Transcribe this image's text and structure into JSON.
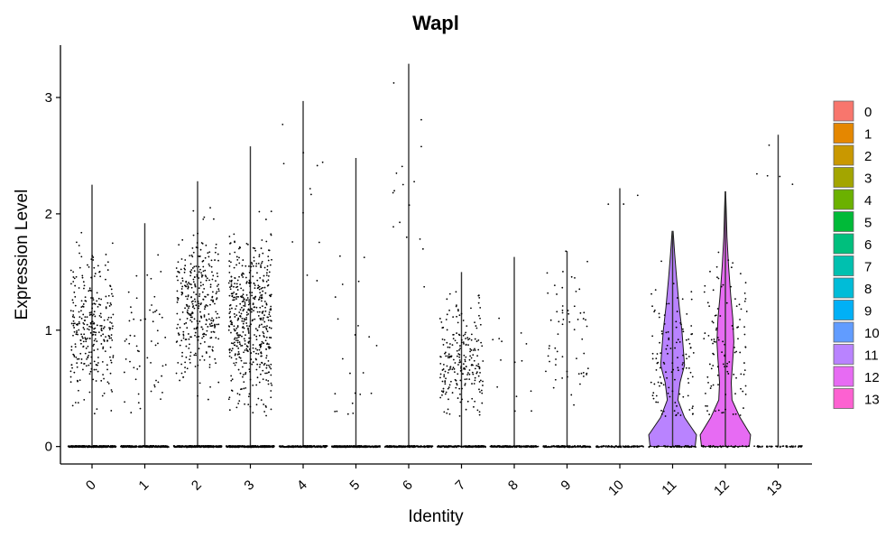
{
  "chart_data": {
    "type": "violin",
    "title": "Wapl",
    "xlabel": "Identity",
    "ylabel": "Expression Level",
    "ylim": [
      -0.15,
      3.45
    ],
    "yticks": [
      0,
      1,
      2,
      3
    ],
    "categories": [
      "0",
      "1",
      "2",
      "3",
      "4",
      "5",
      "6",
      "7",
      "8",
      "9",
      "10",
      "11",
      "12",
      "13"
    ],
    "colors": [
      "#F8766D",
      "#E58700",
      "#C99800",
      "#A3A500",
      "#6BB100",
      "#00BA38",
      "#00BF7D",
      "#00C0AF",
      "#00BCD8",
      "#00B0F6",
      "#619CFF",
      "#B983FF",
      "#E76BF3",
      "#FD61D1"
    ],
    "max_values": [
      2.25,
      1.92,
      2.28,
      2.58,
      2.97,
      2.48,
      3.29,
      1.5,
      1.63,
      1.68,
      2.22,
      1.85,
      2.19,
      2.68
    ],
    "nonzero_center": [
      1.0,
      0.95,
      1.2,
      1.1,
      2.2,
      0.7,
      2.2,
      0.75,
      0.9,
      0.95,
      1.9,
      0.75,
      0.9,
      2.2
    ],
    "nonzero_spread": [
      0.3,
      0.35,
      0.3,
      0.35,
      0.4,
      0.5,
      0.5,
      0.25,
      0.35,
      0.3,
      0.3,
      0.35,
      0.4,
      0.3
    ],
    "nonzero_counts": [
      300,
      60,
      340,
      520,
      12,
      22,
      16,
      230,
      14,
      60,
      3,
      120,
      110,
      5
    ],
    "zero_counts": [
      350,
      300,
      300,
      300,
      250,
      250,
      200,
      200,
      180,
      150,
      100,
      60,
      40,
      50
    ],
    "violins": [
      {
        "category": "11",
        "profile": [
          [
            0,
            0.85
          ],
          [
            0.1,
            0.9
          ],
          [
            0.25,
            0.45
          ],
          [
            0.4,
            0.2
          ],
          [
            0.55,
            0.28
          ],
          [
            0.7,
            0.45
          ],
          [
            0.85,
            0.4
          ],
          [
            1.0,
            0.35
          ],
          [
            1.2,
            0.25
          ],
          [
            1.45,
            0.15
          ],
          [
            1.65,
            0.08
          ],
          [
            1.85,
            0.02
          ]
        ]
      },
      {
        "category": "12",
        "profile": [
          [
            0,
            0.9
          ],
          [
            0.1,
            0.95
          ],
          [
            0.25,
            0.55
          ],
          [
            0.4,
            0.25
          ],
          [
            0.55,
            0.22
          ],
          [
            0.75,
            0.28
          ],
          [
            0.9,
            0.32
          ],
          [
            1.1,
            0.28
          ],
          [
            1.3,
            0.2
          ],
          [
            1.55,
            0.12
          ],
          [
            1.8,
            0.06
          ],
          [
            2.05,
            0.03
          ],
          [
            2.19,
            0.01
          ]
        ]
      }
    ],
    "legend": {
      "position": "right",
      "labels": [
        "0",
        "1",
        "2",
        "3",
        "4",
        "5",
        "6",
        "7",
        "8",
        "9",
        "10",
        "11",
        "12",
        "13"
      ]
    },
    "grid": false
  }
}
